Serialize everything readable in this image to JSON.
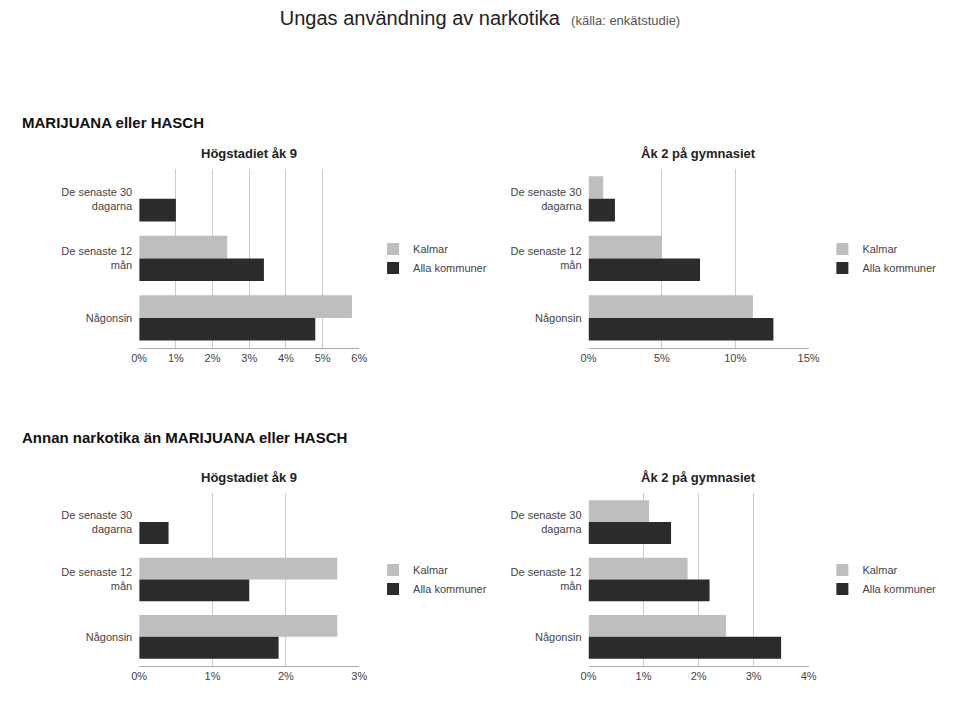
{
  "title": "Ungas användning av narkotika",
  "subtitle": "(källa: enkätstudie)",
  "annotations": [
    "MARIJUANA eller HASCH",
    "Annan narkotika än MARIJUANA eller HASCH"
  ],
  "chart_data": [
    {
      "type": "bar",
      "orientation": "horizontal",
      "title": "Högstadiet åk 9",
      "categories": [
        "De senaste 30\ndagarna",
        "De senaste 12\nmån",
        "Någonsin"
      ],
      "series": [
        {
          "name": "Kalmar",
          "color": "#bebebe",
          "values": [
            0.0,
            0.024,
            0.058
          ]
        },
        {
          "name": "Alla kommuner",
          "color": "#2b2b2b",
          "values": [
            0.01,
            0.034,
            0.048
          ]
        }
      ],
      "xlim": [
        0,
        0.06
      ],
      "xticks": [
        {
          "value": 0.0,
          "label": "0%"
        },
        {
          "value": 0.01,
          "label": "1%"
        },
        {
          "value": 0.02,
          "label": "2%"
        },
        {
          "value": 0.03,
          "label": "3%"
        },
        {
          "value": 0.04,
          "label": "4%"
        },
        {
          "value": 0.05,
          "label": "5%"
        },
        {
          "value": 0.06,
          "label": "6%"
        }
      ],
      "grid": true,
      "legend": "right"
    },
    {
      "type": "bar",
      "orientation": "horizontal",
      "title": "Åk 2 på gymnasiet",
      "categories": [
        "De senaste 30\ndagarna",
        "De senaste 12\nmån",
        "Någonsin"
      ],
      "series": [
        {
          "name": "Kalmar",
          "color": "#bebebe",
          "values": [
            0.01,
            0.05,
            0.112
          ]
        },
        {
          "name": "Alla kommuner",
          "color": "#2b2b2b",
          "values": [
            0.018,
            0.076,
            0.126
          ]
        }
      ],
      "xlim": [
        0,
        0.15
      ],
      "xticks": [
        {
          "value": 0.0,
          "label": "0%"
        },
        {
          "value": 0.05,
          "label": "5%"
        },
        {
          "value": 0.1,
          "label": "10%"
        },
        {
          "value": 0.15,
          "label": "15%"
        }
      ],
      "grid": true,
      "legend": "right"
    },
    {
      "type": "bar",
      "orientation": "horizontal",
      "title": "Högstadiet åk 9",
      "categories": [
        "De senaste 30\ndagarna",
        "De senaste 12\nmån",
        "Någonsin"
      ],
      "series": [
        {
          "name": "Kalmar",
          "color": "#bebebe",
          "values": [
            0.0,
            0.027,
            0.027
          ]
        },
        {
          "name": "Alla kommuner",
          "color": "#2b2b2b",
          "values": [
            0.004,
            0.015,
            0.019
          ]
        }
      ],
      "xlim": [
        0,
        0.03
      ],
      "xticks": [
        {
          "value": 0.0,
          "label": "0%"
        },
        {
          "value": 0.01,
          "label": "1%"
        },
        {
          "value": 0.02,
          "label": "2%"
        },
        {
          "value": 0.03,
          "label": "3%"
        }
      ],
      "grid": true,
      "legend": "right"
    },
    {
      "type": "bar",
      "orientation": "horizontal",
      "title": "Åk 2 på gymnasiet",
      "categories": [
        "De senaste 30\ndagarna",
        "De senaste 12\nmån",
        "Någonsin"
      ],
      "series": [
        {
          "name": "Kalmar",
          "color": "#bebebe",
          "values": [
            0.011,
            0.018,
            0.025
          ]
        },
        {
          "name": "Alla kommuner",
          "color": "#2b2b2b",
          "values": [
            0.015,
            0.022,
            0.035
          ]
        }
      ],
      "xlim": [
        0,
        0.04
      ],
      "xticks": [
        {
          "value": 0.0,
          "label": "0%"
        },
        {
          "value": 0.01,
          "label": "1%"
        },
        {
          "value": 0.02,
          "label": "2%"
        },
        {
          "value": 0.03,
          "label": "3%"
        },
        {
          "value": 0.04,
          "label": "4%"
        }
      ],
      "grid": true,
      "legend": "right"
    }
  ]
}
